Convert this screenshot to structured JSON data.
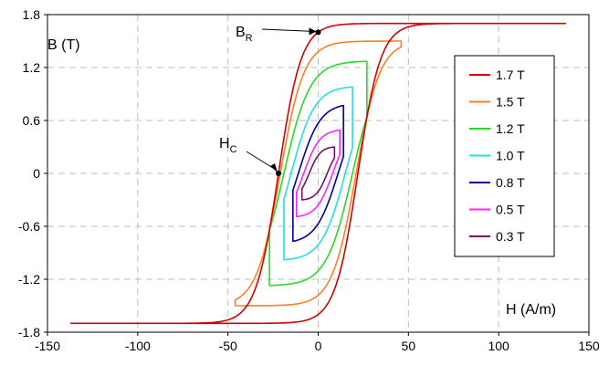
{
  "chart_data": {
    "type": "line",
    "xlabel": "H (A/m)",
    "ylabel": "B (T)",
    "xlim": [
      -150,
      150
    ],
    "ylim": [
      -1.8,
      1.8
    ],
    "x_ticks": [
      "-150",
      "-100",
      "-50",
      "0",
      "50",
      "100",
      "150"
    ],
    "y_ticks": [
      "1.8",
      "1.2",
      "0.6",
      "0",
      "-0.6",
      "-1.2",
      "-1.8"
    ],
    "grid": true,
    "legend_position": "right",
    "series": [
      {
        "name": "1.7 T",
        "color": "#d40000",
        "Bmax": 1.7,
        "Hmax": 137,
        "Br": 1.6,
        "Hc": 22
      },
      {
        "name": "1.5 T",
        "color": "#ff7f1f",
        "Bmax": 1.5,
        "Hmax": 46,
        "Br": 1.38,
        "Hc": 21
      },
      {
        "name": "1.2 T",
        "color": "#22dd22",
        "Bmax": 1.27,
        "Hmax": 27,
        "Br": 1.1,
        "Hc": 19
      },
      {
        "name": "1.0 T",
        "color": "#22e0e0",
        "Bmax": 0.98,
        "Hmax": 19,
        "Br": 0.8,
        "Hc": 15
      },
      {
        "name": "0.8 T",
        "color": "#000099",
        "Bmax": 0.77,
        "Hmax": 14,
        "Br": 0.55,
        "Hc": 11
      },
      {
        "name": "0.5 T",
        "color": "#ff22ff",
        "Bmax": 0.49,
        "Hmax": 12,
        "Br": 0.35,
        "Hc": 8
      },
      {
        "name": "0.3 T",
        "color": "#771166",
        "Bmax": 0.3,
        "Hmax": 9,
        "Br": 0.2,
        "Hc": 5
      }
    ],
    "annotations": {
      "br": {
        "main": "B",
        "sub": "R",
        "H": 0,
        "B": 1.6
      },
      "hc": {
        "main": "H",
        "sub": "C",
        "H": -22,
        "B": 0
      }
    }
  }
}
